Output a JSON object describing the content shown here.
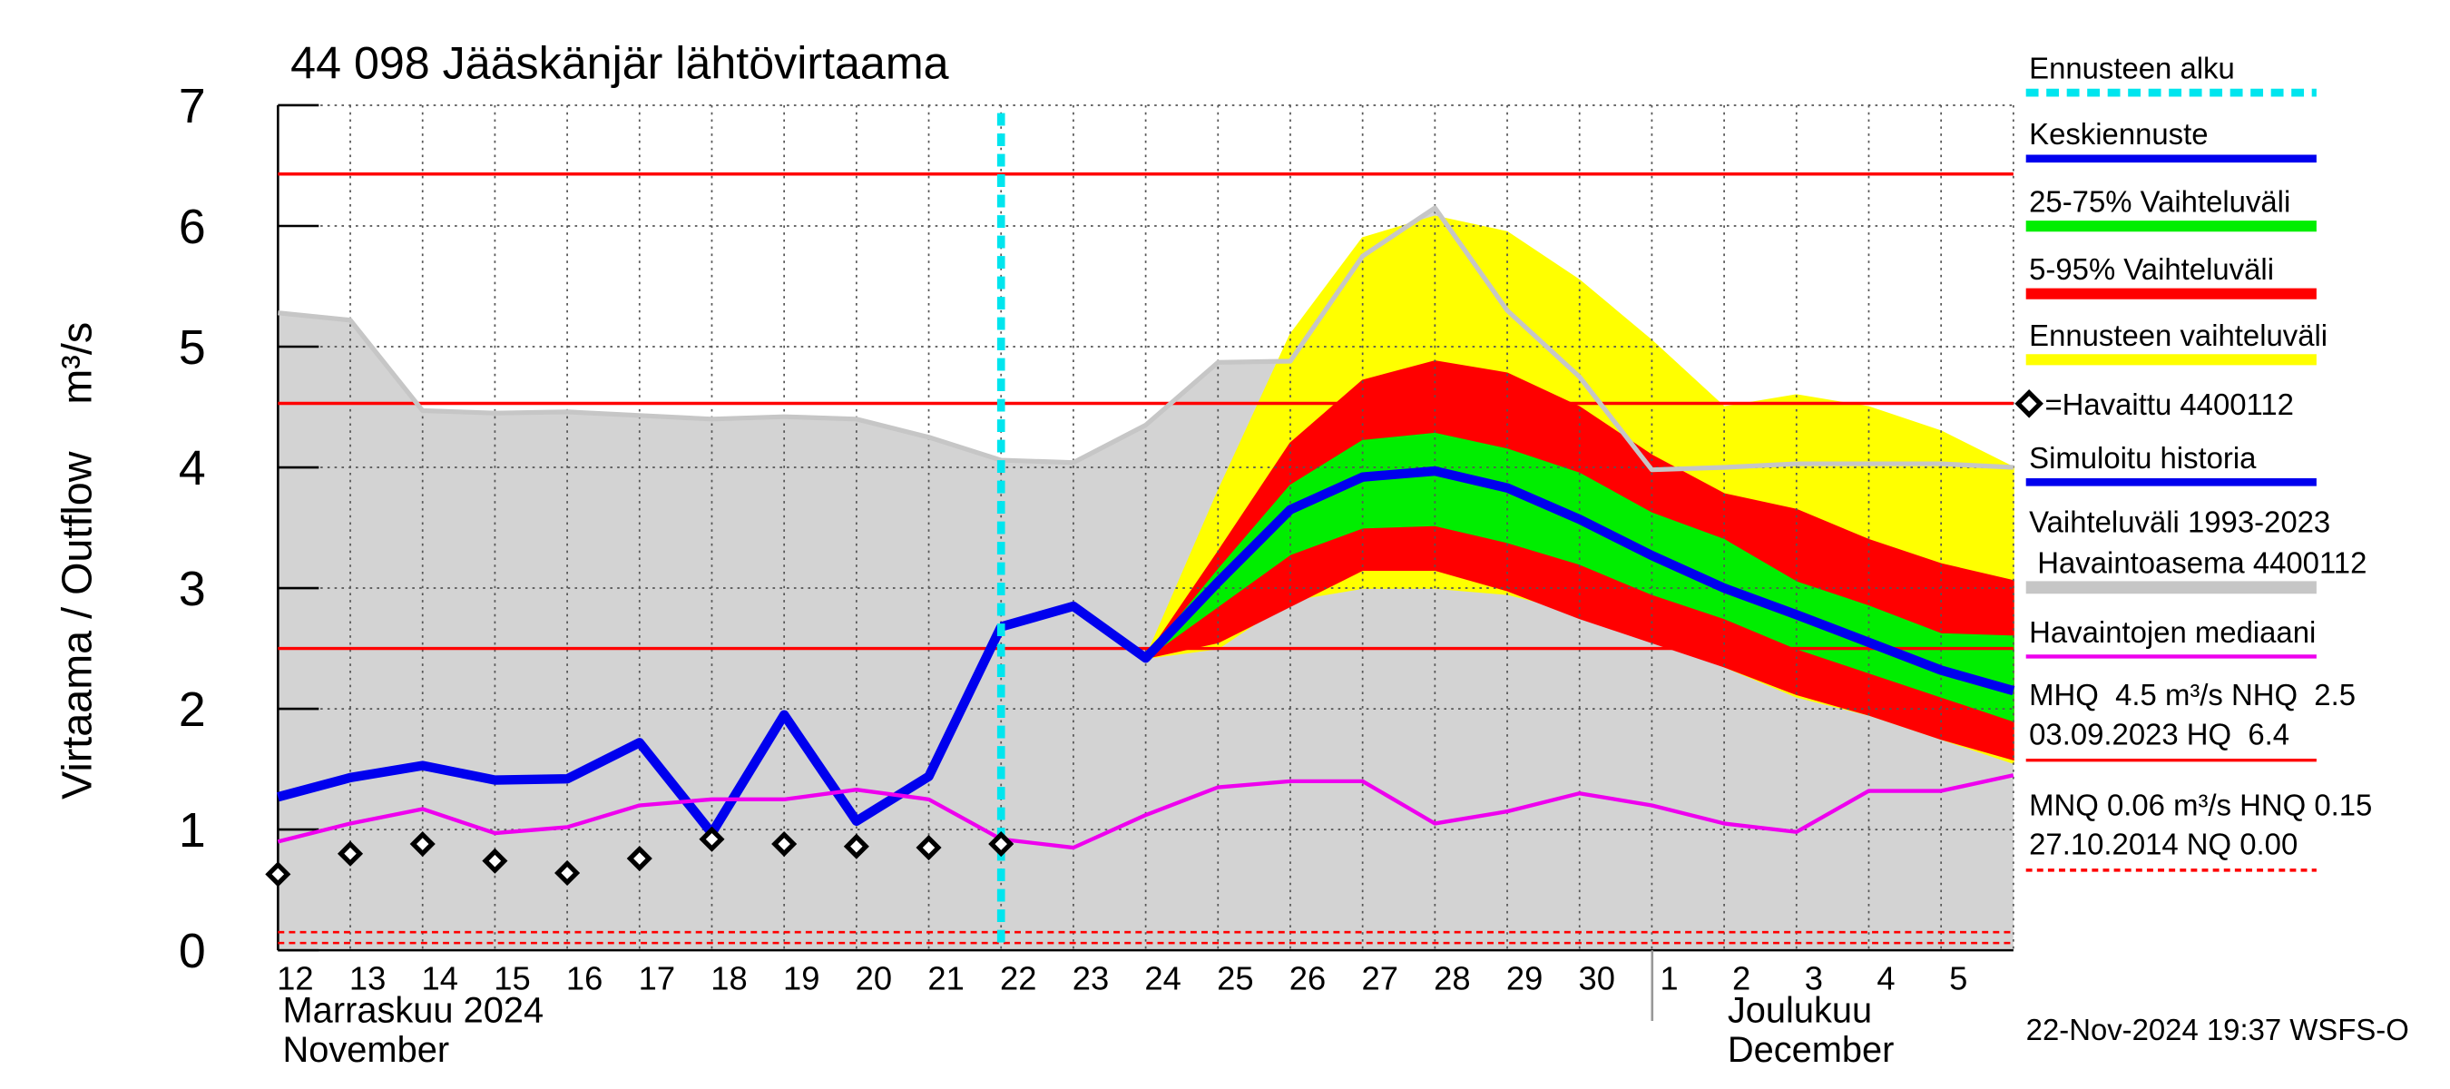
{
  "chart_data": {
    "type": "line",
    "title": "44 098 Jääskänjär lähtövirtaama",
    "y_label": "Virtaama / Outflow    m³/s",
    "categories": [
      "12",
      "13",
      "14",
      "15",
      "16",
      "17",
      "18",
      "19",
      "20",
      "21",
      "22",
      "23",
      "24",
      "25",
      "26",
      "27",
      "28",
      "29",
      "30",
      "1",
      "2",
      "3",
      "4",
      "5",
      null
    ],
    "month_labels": [
      [
        "Marraskuu 2024",
        "November"
      ],
      [
        "Joulukuu",
        "December"
      ]
    ],
    "timestamp": "22-Nov-2024 19:37 WSFS-O",
    "ylim": [
      0,
      7
    ],
    "yticks": [
      0,
      1,
      2,
      3,
      4,
      5,
      6,
      7
    ],
    "grid": true,
    "series": [
      {
        "name": "Ennusteen alku",
        "kind": "vline",
        "x": "22",
        "color": "#00e5ee",
        "linewidth": 5
      },
      {
        "name": "Keskiennuste",
        "kind": "line",
        "color": "#0000ee",
        "linewidth": 6,
        "values": [
          null,
          null,
          null,
          null,
          null,
          null,
          null,
          null,
          null,
          null,
          2.68,
          2.85,
          2.42,
          3.05,
          3.65,
          3.92,
          3.97,
          3.83,
          3.57,
          3.27,
          3.0,
          2.78,
          2.55,
          2.32,
          2.15
        ]
      },
      {
        "name": "25-75% Vaihteluväli",
        "kind": "band",
        "color": "#00ee00",
        "linewidth": 7,
        "lower": [
          null,
          null,
          null,
          null,
          null,
          null,
          null,
          null,
          null,
          null,
          2.68,
          2.85,
          2.42,
          2.85,
          3.28,
          3.5,
          3.52,
          3.38,
          3.2,
          2.95,
          2.75,
          2.5,
          2.3,
          2.1,
          1.9
        ],
        "upper": [
          null,
          null,
          null,
          null,
          null,
          null,
          null,
          null,
          null,
          null,
          2.68,
          2.85,
          2.42,
          3.15,
          3.85,
          4.22,
          4.28,
          4.15,
          3.95,
          3.62,
          3.4,
          3.05,
          2.85,
          2.62,
          2.6
        ]
      },
      {
        "name": "5-95% Vaihteluväli",
        "kind": "band",
        "color": "#ff0000",
        "linewidth": 7,
        "lower": [
          null,
          null,
          null,
          null,
          null,
          null,
          null,
          null,
          null,
          null,
          2.68,
          2.85,
          2.42,
          2.55,
          2.85,
          3.15,
          3.15,
          2.98,
          2.75,
          2.55,
          2.35,
          2.12,
          1.95,
          1.75,
          1.58
        ],
        "upper": [
          null,
          null,
          null,
          null,
          null,
          null,
          null,
          null,
          null,
          null,
          2.68,
          2.85,
          2.42,
          3.3,
          4.2,
          4.72,
          4.88,
          4.78,
          4.5,
          4.1,
          3.78,
          3.65,
          3.4,
          3.2,
          3.06
        ]
      },
      {
        "name": "Ennusteen vaihteluväli",
        "kind": "band",
        "color": "#ffff00",
        "linewidth": 7,
        "lower": [
          null,
          null,
          null,
          null,
          null,
          null,
          null,
          null,
          null,
          null,
          2.68,
          2.85,
          2.42,
          2.5,
          2.9,
          3.0,
          3.0,
          2.95,
          2.8,
          2.6,
          2.35,
          2.1,
          1.95,
          1.75,
          1.55
        ],
        "upper": [
          null,
          null,
          null,
          null,
          null,
          null,
          null,
          null,
          null,
          null,
          2.68,
          2.85,
          2.42,
          3.8,
          5.1,
          5.9,
          6.08,
          5.95,
          5.55,
          5.05,
          4.5,
          4.6,
          4.5,
          4.3,
          4.0
        ]
      },
      {
        "name": "=Havaittu 4400112",
        "kind": "points",
        "color": "#000000",
        "linewidth": 3,
        "values": [
          0.63,
          0.8,
          0.88,
          0.74,
          0.64,
          0.76,
          0.92,
          0.88,
          0.86,
          0.85,
          0.88,
          null,
          null,
          null,
          null,
          null,
          null,
          null,
          null,
          null,
          null,
          null,
          null,
          null,
          null
        ]
      },
      {
        "name": "Simuloitu historia",
        "kind": "line",
        "color": "#0000ee",
        "linewidth": 6,
        "values": [
          1.27,
          1.43,
          1.53,
          1.41,
          1.42,
          1.72,
          0.97,
          1.95,
          1.07,
          1.44,
          2.68,
          null,
          null,
          null,
          null,
          null,
          null,
          null,
          null,
          null,
          null,
          null,
          null,
          null,
          null
        ]
      },
      {
        "name": [
          "Vaihteluväli 1993-2023",
          " Havaintoasema 4400112"
        ],
        "kind": "area",
        "color": "#d3d3d3",
        "linecolor": "#c6c6c6",
        "linewidth": 8,
        "values": [
          5.28,
          5.22,
          4.47,
          4.45,
          4.46,
          4.43,
          4.4,
          4.42,
          4.4,
          4.25,
          4.06,
          4.04,
          4.35,
          4.87,
          4.88,
          5.75,
          6.15,
          5.3,
          4.75,
          3.98,
          4.0,
          4.03,
          4.03,
          4.03,
          4.0
        ]
      },
      {
        "name": "Havaintojen mediaani",
        "kind": "line",
        "color": "#ee00ee",
        "linewidth": 2.5,
        "values": [
          0.9,
          1.05,
          1.17,
          0.97,
          1.02,
          1.2,
          1.25,
          1.25,
          1.33,
          1.25,
          0.92,
          0.85,
          1.12,
          1.35,
          1.4,
          1.4,
          1.05,
          1.15,
          1.3,
          1.2,
          1.05,
          0.98,
          1.32,
          1.32,
          1.45
        ]
      }
    ],
    "reference_lines": [
      {
        "legend": [
          "MHQ  4.5 m³/s NHQ  2.5",
          "03.09.2023 HQ  6.4"
        ],
        "color": "#ff0000",
        "dashed": false,
        "values": [
          6.43,
          4.53,
          2.5
        ]
      },
      {
        "legend": [
          "MNQ 0.06 m³/s HNQ 0.15",
          "27.10.2014 NQ 0.00"
        ],
        "color": "#ff0000",
        "dashed": true,
        "values": [
          0.15,
          0.06
        ]
      }
    ]
  }
}
